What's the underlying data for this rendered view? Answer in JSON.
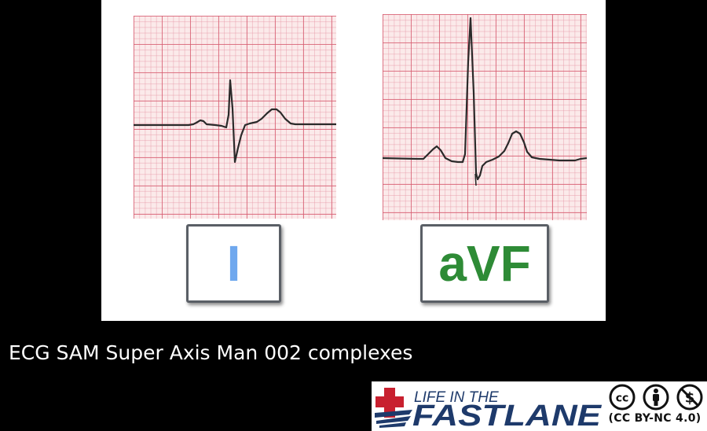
{
  "leads": [
    {
      "label": "I",
      "color": "#6fa8ee"
    },
    {
      "label": "aVF",
      "color": "#2e8b36"
    }
  ],
  "caption": "ECG SAM Super Axis Man 002 complexes",
  "logo": {
    "line1": "LIFE IN THE",
    "line2": "FASTLANE",
    "accent": "#c8202f",
    "navy": "#1e3a6b"
  },
  "license": {
    "text": "(CC BY-NC 4.0)"
  }
}
